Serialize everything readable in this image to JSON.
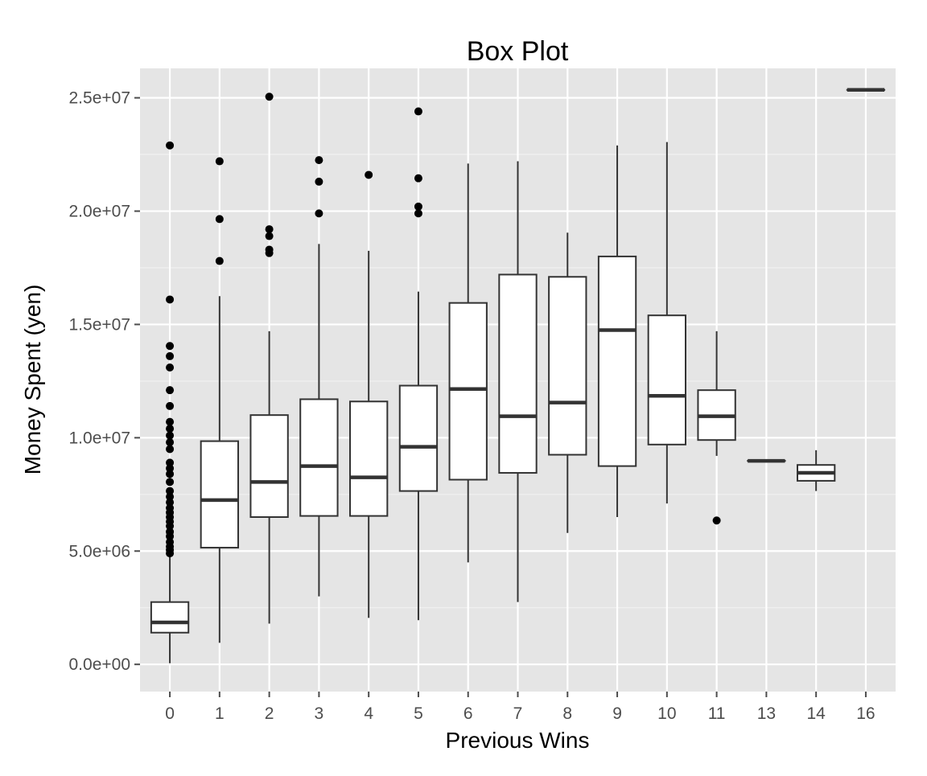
{
  "chart_data": {
    "type": "box",
    "title": "Box Plot",
    "xlabel": "Previous Wins",
    "ylabel": "Money Spent (yen)",
    "ylim": [
      -1200000,
      26300000
    ],
    "y_ticks": [
      0,
      5000000,
      10000000,
      15000000,
      20000000,
      25000000
    ],
    "y_tick_labels": [
      "0.0e+00",
      "5.0e+06",
      "1.0e+07",
      "1.5e+07",
      "2.0e+07",
      "2.5e+07"
    ],
    "grid": true,
    "categories": [
      "0",
      "1",
      "2",
      "3",
      "4",
      "5",
      "6",
      "7",
      "8",
      "9",
      "10",
      "11",
      "13",
      "14",
      "16"
    ],
    "boxes": [
      {
        "category": "0",
        "whisker_low": 50000,
        "q1": 1400000,
        "median": 1850000,
        "q3": 2750000,
        "whisker_high": 4900000,
        "outliers": [
          4900000,
          5050000,
          5200000,
          5400000,
          5650000,
          5850000,
          6100000,
          6300000,
          6500000,
          6700000,
          6900000,
          7150000,
          7400000,
          7650000,
          8050000,
          8400000,
          8650000,
          8900000,
          9500000,
          9800000,
          10100000,
          10400000,
          10700000,
          11400000,
          12100000,
          13100000,
          13600000,
          14050000,
          16100000,
          22900000
        ]
      },
      {
        "category": "1",
        "whisker_low": 950000,
        "q1": 5150000,
        "median": 7250000,
        "q3": 9850000,
        "whisker_high": 16250000,
        "outliers": [
          17800000,
          19650000,
          22200000
        ]
      },
      {
        "category": "2",
        "whisker_low": 1800000,
        "q1": 6500000,
        "median": 8050000,
        "q3": 11000000,
        "whisker_high": 14700000,
        "outliers": [
          18150000,
          18300000,
          18900000,
          19200000,
          25050000
        ]
      },
      {
        "category": "3",
        "whisker_low": 3000000,
        "q1": 6550000,
        "median": 8750000,
        "q3": 11700000,
        "whisker_high": 18550000,
        "outliers": [
          19900000,
          21300000,
          22250000
        ]
      },
      {
        "category": "4",
        "whisker_low": 2050000,
        "q1": 6550000,
        "median": 8250000,
        "q3": 11600000,
        "whisker_high": 18250000,
        "outliers": [
          21600000
        ]
      },
      {
        "category": "5",
        "whisker_low": 1950000,
        "q1": 7650000,
        "median": 9600000,
        "q3": 12300000,
        "whisker_high": 16450000,
        "outliers": [
          19900000,
          20200000,
          21450000,
          24400000
        ]
      },
      {
        "category": "6",
        "whisker_low": 4500000,
        "q1": 8150000,
        "median": 12150000,
        "q3": 15950000,
        "whisker_high": 22100000,
        "outliers": []
      },
      {
        "category": "7",
        "whisker_low": 2750000,
        "q1": 8450000,
        "median": 10950000,
        "q3": 17200000,
        "whisker_high": 22200000,
        "outliers": []
      },
      {
        "category": "8",
        "whisker_low": 5800000,
        "q1": 9250000,
        "median": 11550000,
        "q3": 17100000,
        "whisker_high": 19050000,
        "outliers": []
      },
      {
        "category": "9",
        "whisker_low": 6500000,
        "q1": 8750000,
        "median": 14750000,
        "q3": 18000000,
        "whisker_high": 22900000,
        "outliers": []
      },
      {
        "category": "10",
        "whisker_low": 7100000,
        "q1": 9700000,
        "median": 11850000,
        "q3": 15400000,
        "whisker_high": 23050000,
        "outliers": []
      },
      {
        "category": "11",
        "whisker_low": 9200000,
        "q1": 9900000,
        "median": 10950000,
        "q3": 12100000,
        "whisker_high": 14700000,
        "outliers": [
          6350000
        ]
      },
      {
        "category": "13",
        "whisker_low": 8980000,
        "q1": 8980000,
        "median": 8980000,
        "q3": 8980000,
        "whisker_high": 8980000,
        "outliers": []
      },
      {
        "category": "14",
        "whisker_low": 7650000,
        "q1": 8100000,
        "median": 8450000,
        "q3": 8800000,
        "whisker_high": 9450000,
        "outliers": []
      },
      {
        "category": "16",
        "whisker_low": 25350000,
        "q1": 25350000,
        "median": 25350000,
        "q3": 25350000,
        "whisker_high": 25350000,
        "outliers": []
      }
    ]
  }
}
